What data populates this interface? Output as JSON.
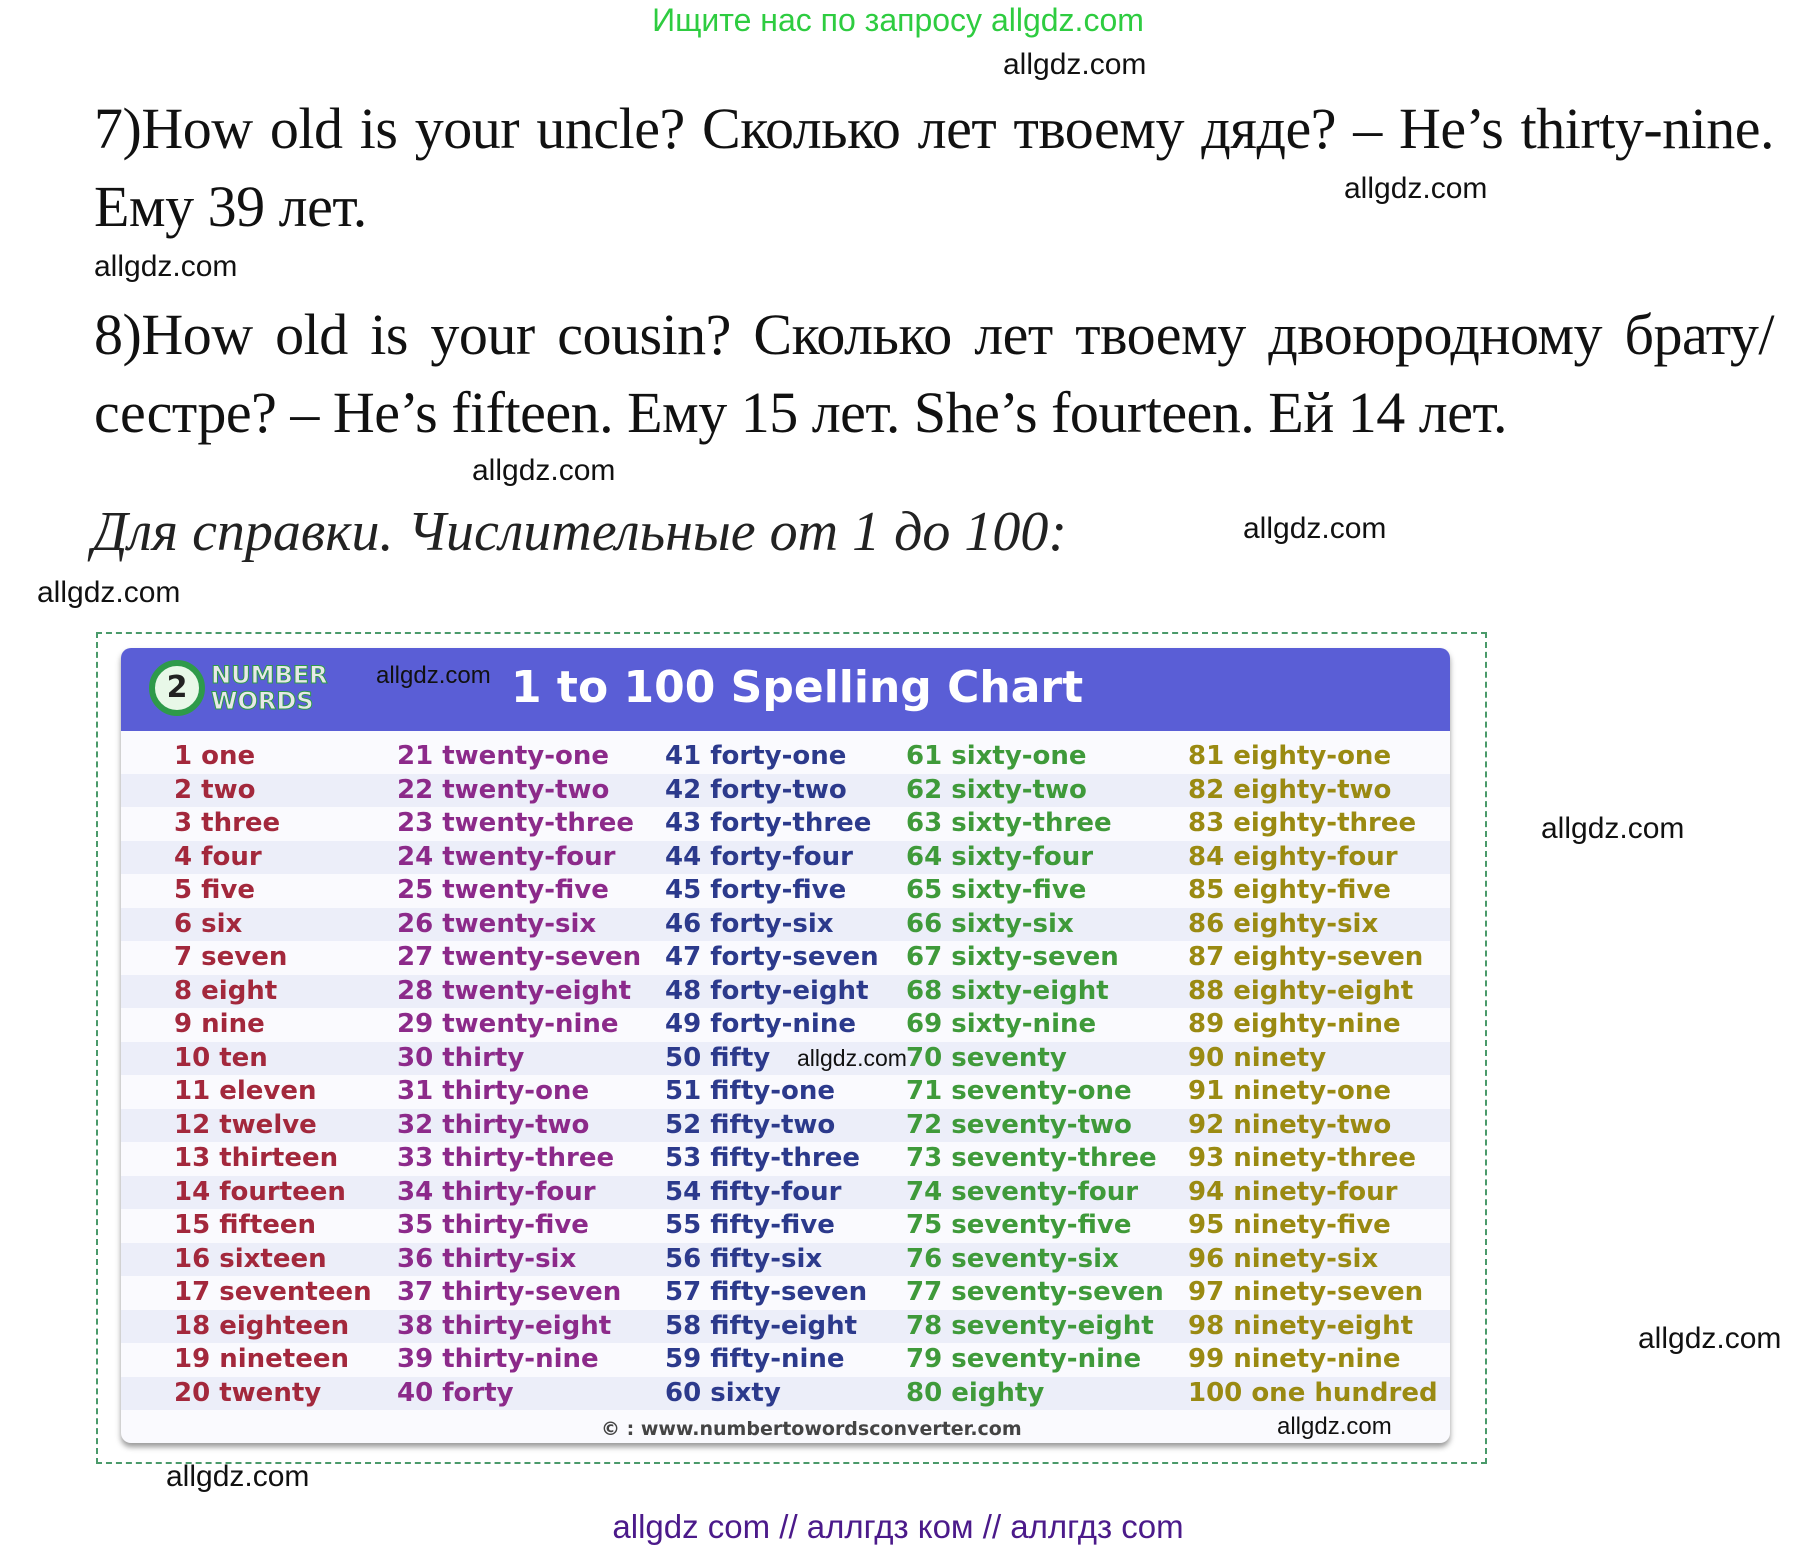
{
  "top_banner": "Ищите нас по запросу allgdz.com",
  "watermark": "allgdz.com",
  "paragraphs": [
    "7)How old is your uncle? Сколько лет твоему дяде? – He’s thirty-nine. Ему 39 лет.",
    "8)How old is your cousin? Сколько лет твоему двоюродному брату/сестре? – He’s fifteen. Ему 15 лет. She’s fourteen. Ей 14 лет."
  ],
  "reference_heading": "Для справки. Числительные от 1 до 100:",
  "chart": {
    "logo_number": "2",
    "logo_line1": "NUMBER",
    "logo_line2": "WORDS",
    "title": "1 to 100 Spelling Chart",
    "footer": "© : www.numbertowordsconverter.com",
    "header_color": "#5a5ed6",
    "column_colors": [
      "#a3283c",
      "#8c2a8a",
      "#2c3a8c",
      "#3f9a3a",
      "#9a8a12"
    ],
    "columns": [
      [
        "1 one",
        "2 two",
        "3 three",
        "4 four",
        "5 five",
        "6 six",
        "7 seven",
        "8 eight",
        "9 nine",
        "10 ten",
        "11 eleven",
        "12 twelve",
        "13 thirteen",
        "14 fourteen",
        "15 fifteen",
        "16 sixteen",
        "17 seventeen",
        "18 eighteen",
        "19 nineteen",
        "20 twenty"
      ],
      [
        "21 twenty-one",
        "22 twenty-two",
        "23 twenty-three",
        "24 twenty-four",
        "25 twenty-five",
        "26 twenty-six",
        "27 twenty-seven",
        "28 twenty-eight",
        "29 twenty-nine",
        "30 thirty",
        "31 thirty-one",
        "32 thirty-two",
        "33 thirty-three",
        "34 thirty-four",
        "35 thirty-five",
        "36 thirty-six",
        "37 thirty-seven",
        "38 thirty-eight",
        "39 thirty-nine",
        "40 forty"
      ],
      [
        "41 forty-one",
        "42 forty-two",
        "43 forty-three",
        "44 forty-four",
        "45 forty-five",
        "46 forty-six",
        "47 forty-seven",
        "48 forty-eight",
        "49 forty-nine",
        "50 fifty",
        "51 fifty-one",
        "52 fifty-two",
        "53 fifty-three",
        "54 fifty-four",
        "55 fifty-five",
        "56 fifty-six",
        "57 fifty-seven",
        "58 fifty-eight",
        "59 fifty-nine",
        "60 sixty"
      ],
      [
        "61 sixty-one",
        "62 sixty-two",
        "63 sixty-three",
        "64 sixty-four",
        "65 sixty-five",
        "66 sixty-six",
        "67 sixty-seven",
        "68 sixty-eight",
        "69 sixty-nine",
        "70 seventy",
        "71 seventy-one",
        "72 seventy-two",
        "73 seventy-three",
        "74 seventy-four",
        "75 seventy-five",
        "76 seventy-six",
        "77 seventy-seven",
        "78 seventy-eight",
        "79 seventy-nine",
        "80 eighty"
      ],
      [
        "81 eighty-one",
        "82 eighty-two",
        "83 eighty-three",
        "84 eighty-four",
        "85 eighty-five",
        "86 eighty-six",
        "87 eighty-seven",
        "88 eighty-eight",
        "89 eighty-nine",
        "90 ninety",
        "91 ninety-one",
        "92 ninety-two",
        "93 ninety-three",
        "94 ninety-four",
        "95 ninety-five",
        "96 ninety-six",
        "97 ninety-seven",
        "98 ninety-eight",
        "99 ninety-nine",
        "100 one hundred"
      ]
    ]
  },
  "bottom_banner": "allgdz com  //  аллгдз ком  //  аллгдз com"
}
